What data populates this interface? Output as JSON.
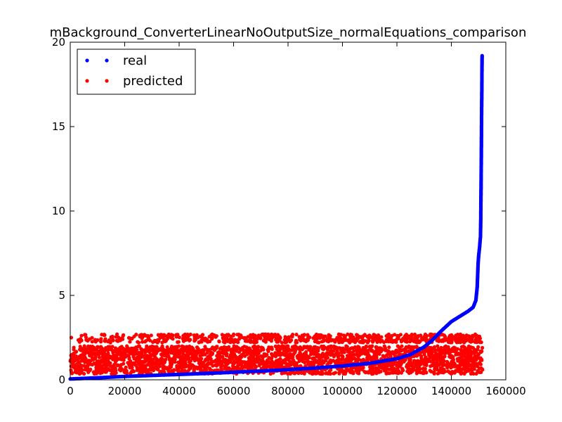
{
  "chart_data": {
    "type": "scatter",
    "title": "mBackground_ConverterLinearNoOutputSize_normalEquations_comparison",
    "xlabel": "",
    "ylabel": "",
    "xlim": [
      0,
      160000
    ],
    "ylim": [
      0,
      20
    ],
    "x_ticks": [
      "0",
      "20000",
      "40000",
      "60000",
      "80000",
      "100000",
      "120000",
      "140000",
      "160000"
    ],
    "y_ticks": [
      "0",
      "5",
      "10",
      "15",
      "20"
    ],
    "grid": false,
    "legend_position": "top-left",
    "series": [
      {
        "name": "real",
        "color": "#0000ff",
        "description_points": [
          [
            0,
            0.05
          ],
          [
            10000,
            0.12
          ],
          [
            20000,
            0.2
          ],
          [
            30000,
            0.26
          ],
          [
            40000,
            0.32
          ],
          [
            50000,
            0.38
          ],
          [
            60000,
            0.45
          ],
          [
            70000,
            0.52
          ],
          [
            80000,
            0.6
          ],
          [
            90000,
            0.7
          ],
          [
            100000,
            0.82
          ],
          [
            110000,
            0.98
          ],
          [
            120000,
            1.25
          ],
          [
            125000,
            1.5
          ],
          [
            130000,
            1.95
          ],
          [
            133000,
            2.35
          ],
          [
            136000,
            2.85
          ],
          [
            138000,
            3.15
          ],
          [
            140000,
            3.45
          ],
          [
            143000,
            3.75
          ],
          [
            146000,
            4.05
          ],
          [
            148000,
            4.3
          ],
          [
            149000,
            4.7
          ],
          [
            149500,
            5.5
          ],
          [
            149800,
            6.8
          ],
          [
            150000,
            7.3
          ],
          [
            150400,
            7.9
          ],
          [
            150700,
            8.5
          ],
          [
            150800,
            9.5
          ],
          [
            150850,
            10.5
          ],
          [
            150900,
            11.2
          ],
          [
            150950,
            12.2
          ],
          [
            151000,
            13.0
          ],
          [
            151050,
            14.2
          ],
          [
            151100,
            15.5
          ],
          [
            151150,
            16.4
          ],
          [
            151200,
            17.3
          ],
          [
            151250,
            18.5
          ],
          [
            151300,
            19.2
          ]
        ]
      },
      {
        "name": "predicted",
        "color": "#ff0000",
        "x_range": [
          0,
          151500
        ],
        "dense_band": [
          0.35,
          2.0
        ],
        "upper_band": [
          2.2,
          2.7
        ]
      }
    ]
  }
}
